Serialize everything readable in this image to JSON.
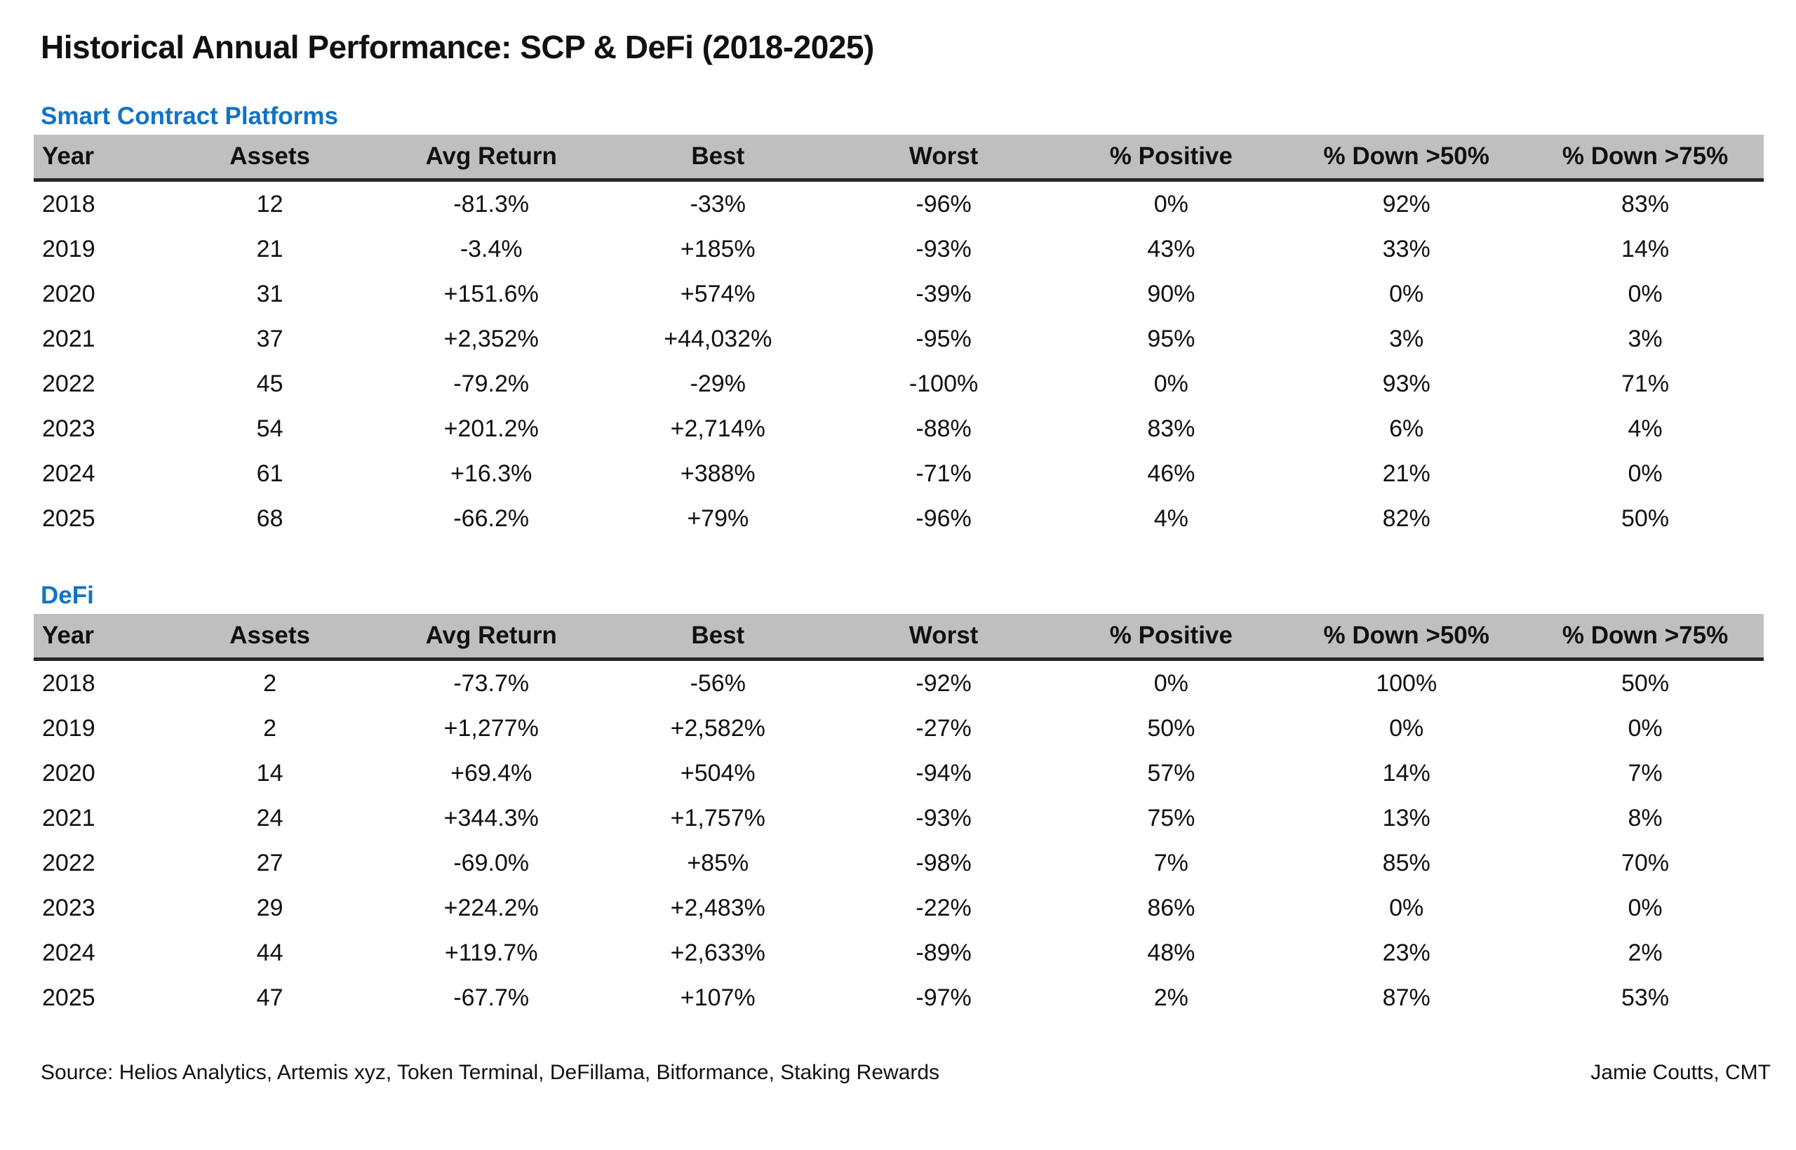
{
  "page_title": "Historical Annual Performance: SCP & DeFi (2018-2025)",
  "footer": {
    "source": "Source: Helios Analytics, Artemis xyz, Token Terminal, DeFillama, Bitformance, Staking Rewards",
    "credit": "Jamie Coutts, CMT"
  },
  "colors": {
    "positive_value": "#189a41",
    "negative_value": "#ef333f",
    "section_label": "#1173c6",
    "header_background": "#bfbfbf",
    "header_underline": "#262626",
    "text": "#111111"
  },
  "chart_data": [
    {
      "type": "table",
      "title": "Smart Contract Platforms",
      "columns": [
        "Year",
        "Assets",
        "Avg Return",
        "Best",
        "Worst",
        "% Positive",
        "% Down >50%",
        "% Down >75%"
      ],
      "color_coded_columns": [
        "Avg Return",
        "Best",
        "Worst"
      ],
      "rows": [
        [
          "2018",
          "12",
          "-81.3%",
          "-33%",
          "-96%",
          "0%",
          "92%",
          "83%"
        ],
        [
          "2019",
          "21",
          "-3.4%",
          "+185%",
          "-93%",
          "43%",
          "33%",
          "14%"
        ],
        [
          "2020",
          "31",
          "+151.6%",
          "+574%",
          "-39%",
          "90%",
          "0%",
          "0%"
        ],
        [
          "2021",
          "37",
          "+2,352%",
          "+44,032%",
          "-95%",
          "95%",
          "3%",
          "3%"
        ],
        [
          "2022",
          "45",
          "-79.2%",
          "-29%",
          "-100%",
          "0%",
          "93%",
          "71%"
        ],
        [
          "2023",
          "54",
          "+201.2%",
          "+2,714%",
          "-88%",
          "83%",
          "6%",
          "4%"
        ],
        [
          "2024",
          "61",
          "+16.3%",
          "+388%",
          "-71%",
          "46%",
          "21%",
          "0%"
        ],
        [
          "2025",
          "68",
          "-66.2%",
          "+79%",
          "-96%",
          "4%",
          "82%",
          "50%"
        ]
      ]
    },
    {
      "type": "table",
      "title": "DeFi",
      "columns": [
        "Year",
        "Assets",
        "Avg Return",
        "Best",
        "Worst",
        "% Positive",
        "% Down >50%",
        "% Down >75%"
      ],
      "color_coded_columns": [
        "Avg Return",
        "Best",
        "Worst"
      ],
      "rows": [
        [
          "2018",
          "2",
          "-73.7%",
          "-56%",
          "-92%",
          "0%",
          "100%",
          "50%"
        ],
        [
          "2019",
          "2",
          "+1,277%",
          "+2,582%",
          "-27%",
          "50%",
          "0%",
          "0%"
        ],
        [
          "2020",
          "14",
          "+69.4%",
          "+504%",
          "-94%",
          "57%",
          "14%",
          "7%"
        ],
        [
          "2021",
          "24",
          "+344.3%",
          "+1,757%",
          "-93%",
          "75%",
          "13%",
          "8%"
        ],
        [
          "2022",
          "27",
          "-69.0%",
          "+85%",
          "-98%",
          "7%",
          "85%",
          "70%"
        ],
        [
          "2023",
          "29",
          "+224.2%",
          "+2,483%",
          "-22%",
          "86%",
          "0%",
          "0%"
        ],
        [
          "2024",
          "44",
          "+119.7%",
          "+2,633%",
          "-89%",
          "48%",
          "23%",
          "2%"
        ],
        [
          "2025",
          "47",
          "-67.7%",
          "+107%",
          "-97%",
          "2%",
          "87%",
          "53%"
        ]
      ]
    }
  ]
}
